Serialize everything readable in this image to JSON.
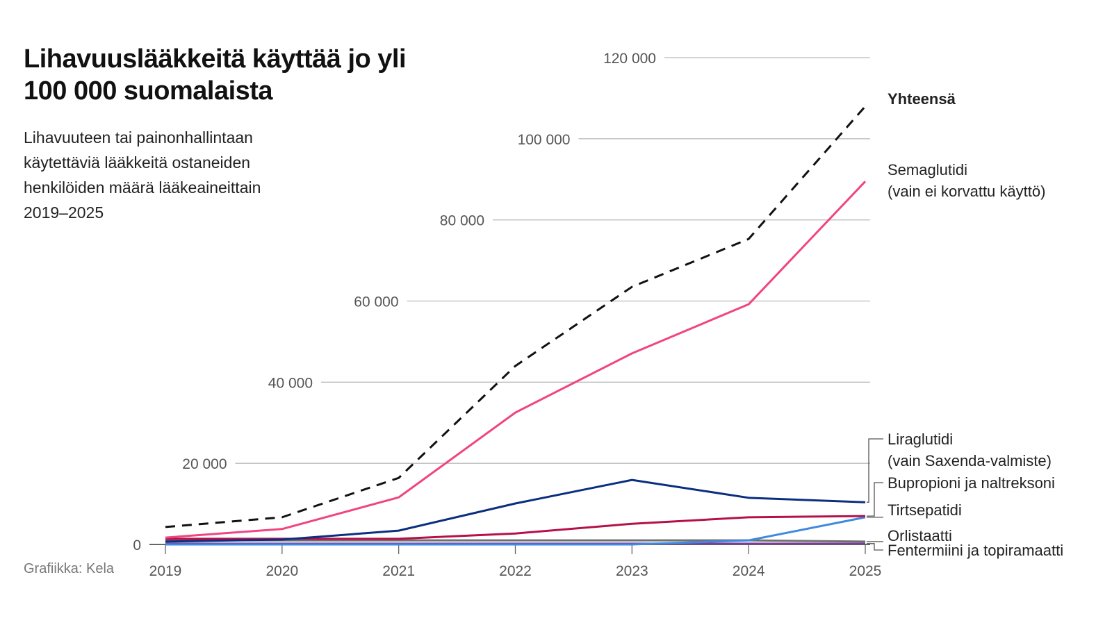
{
  "chart_data": {
    "type": "line",
    "title": "Lihavuuslääkkeitä käyttää jo yli 100 000 suomalaista",
    "subtitle": "Lihavuuteen tai painonhallintaan käytettäviä lääkkeitä ostaneiden henkilöiden määrä lääkeaineittain 2019–2025",
    "credit": "Grafiikka: Kela",
    "x": [
      "2019",
      "2020",
      "2021",
      "2022",
      "2023",
      "2024",
      "2025"
    ],
    "ylim": [
      0,
      120000
    ],
    "yticks": [
      0,
      20000,
      40000,
      60000,
      80000,
      100000,
      120000
    ],
    "ytick_labels": [
      "0",
      "20 000",
      "40 000",
      "60 000",
      "80 000",
      "100 000",
      "120 000"
    ],
    "grid": true,
    "series": [
      {
        "name": "Yhteensä",
        "label_lines": [
          "Yhteensä"
        ],
        "color": "#111111",
        "dashed": true,
        "values": [
          4300,
          6700,
          16400,
          44000,
          63500,
          75300,
          108000
        ]
      },
      {
        "name": "Semaglutidi (vain ei korvattu käyttö)",
        "label_lines": [
          "Semaglutidi",
          "(vain ei korvattu käyttö)"
        ],
        "color": "#f0457f",
        "values": [
          1700,
          3800,
          11600,
          32500,
          47100,
          59200,
          89500
        ]
      },
      {
        "name": "Liraglutidi (vain Saxenda-valmiste)",
        "label_lines": [
          "Liraglutidi",
          "(vain Saxenda-valmiste)"
        ],
        "color": "#0a2f7f",
        "values": [
          700,
          1200,
          3400,
          10100,
          15900,
          11500,
          10400
        ]
      },
      {
        "name": "Bupropioni ja naltreksoni",
        "label_lines": [
          "Bupropioni ja naltreksoni"
        ],
        "color": "#b5104a",
        "values": [
          1400,
          1400,
          1400,
          2700,
          5100,
          6700,
          7000
        ]
      },
      {
        "name": "Tirtsepatidi",
        "label_lines": [
          "Tirtsepatidi"
        ],
        "color": "#3f8ae0",
        "values": [
          0,
          0,
          0,
          0,
          0,
          1000,
          6700
        ]
      },
      {
        "name": "Orlistaatti",
        "label_lines": [
          "Orlistaatti"
        ],
        "color": "#707070",
        "values": [
          1000,
          1000,
          1000,
          1000,
          1000,
          1000,
          700
        ]
      },
      {
        "name": "Fentermiini ja topiramaatti",
        "label_lines": [
          "Fentermiini ja topiramaatti"
        ],
        "color": "#7b3d9a",
        "values": [
          200,
          200,
          200,
          200,
          200,
          200,
          200
        ]
      }
    ]
  }
}
